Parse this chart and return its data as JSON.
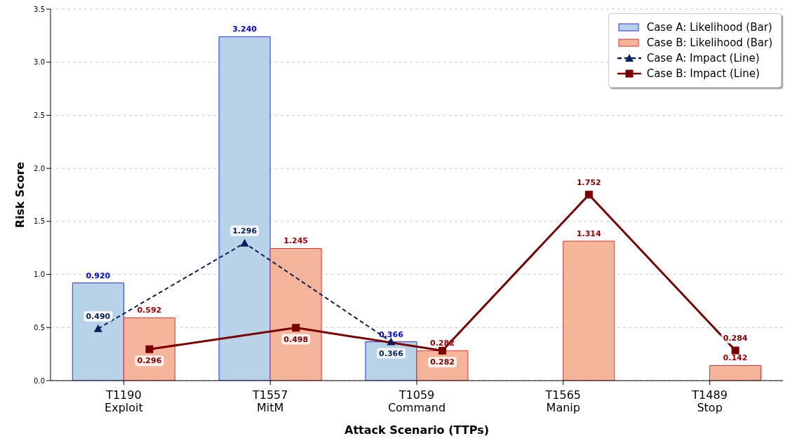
{
  "chart_data": {
    "type": "bar",
    "xlabel": "Attack Scenario (TTPs)",
    "ylabel": "Risk Score",
    "categories": [
      "T1190\nExploit",
      "T1557\nMitM",
      "T1059\nCommand",
      "T1565\nManip",
      "T1489\nStop"
    ],
    "series": [
      {
        "name": "Case A: Likelihood (Bar)",
        "color": "#b8d3e8",
        "values": [
          0.92,
          3.24,
          0.366,
          null,
          null
        ],
        "value_labels": [
          "0.920",
          "3.240",
          "0.366",
          null,
          null
        ]
      },
      {
        "name": "Case B: Likelihood (Bar)",
        "color": "#f5b59a",
        "values": [
          0.592,
          1.245,
          0.282,
          1.314,
          0.142
        ],
        "value_labels": [
          "0.592",
          "1.245",
          "0.282",
          "1.314",
          "0.142"
        ]
      },
      {
        "name": "Case A: Impact (Line)",
        "type": "line",
        "color": "#0b1f5c",
        "marker": "triangle",
        "line_style": "dashed",
        "values": [
          0.49,
          1.296,
          0.366,
          null,
          null
        ],
        "value_labels": [
          "0.490",
          "1.296",
          "0.366",
          null,
          null
        ]
      },
      {
        "name": "Case B: Impact (Line)",
        "type": "line",
        "color": "#7a0000",
        "marker": "square",
        "line_style": "solid",
        "values": [
          0.296,
          0.498,
          0.282,
          1.752,
          0.284
        ],
        "value_labels": [
          "0.296",
          "0.498",
          "0.282",
          "1.752",
          "0.284"
        ]
      }
    ],
    "ylim": [
      0,
      3.5
    ],
    "yticks": [
      {
        "value": 0,
        "label": "0.0"
      },
      {
        "value": 0.5,
        "label": "0.5"
      },
      {
        "value": 1,
        "label": "1.0"
      },
      {
        "value": 1.5,
        "label": "1.5"
      },
      {
        "value": 2,
        "label": "2.0"
      },
      {
        "value": 2.5,
        "label": "2.5"
      },
      {
        "value": 3,
        "label": "3.0"
      },
      {
        "value": 3.5,
        "label": "3.5"
      }
    ],
    "grid": "y",
    "legend": "top right"
  }
}
